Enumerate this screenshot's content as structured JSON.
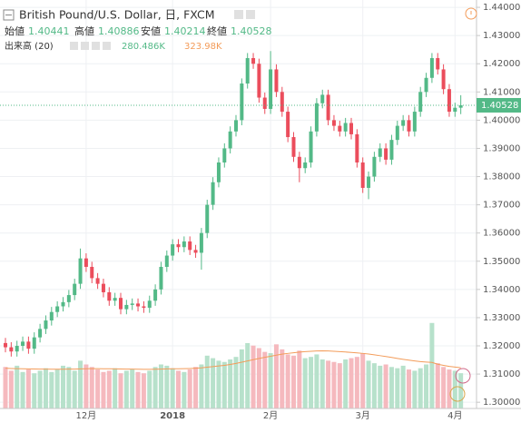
{
  "chart_data": {
    "type": "candlestick",
    "title": "British Pound/U.S. Dollar, 日, FXCM",
    "ohlc_labels": [
      "始値",
      "高値",
      "安値",
      "終値"
    ],
    "volume_label": "出来高 (20)",
    "volume_value_label": "280.486K",
    "volume_ma_value_label": "323.98K",
    "categories": [
      null,
      null,
      null,
      null,
      null,
      null,
      null,
      null,
      null,
      null,
      null,
      null,
      null,
      null,
      "12月",
      null,
      null,
      null,
      null,
      null,
      null,
      null,
      null,
      null,
      null,
      null,
      null,
      null,
      null,
      "2018",
      null,
      null,
      null,
      null,
      null,
      null,
      null,
      null,
      null,
      null,
      null,
      null,
      null,
      null,
      null,
      null,
      "2月",
      null,
      null,
      null,
      null,
      null,
      null,
      null,
      null,
      null,
      null,
      null,
      null,
      null,
      null,
      null,
      "3月",
      null,
      null,
      null,
      null,
      null,
      null,
      null,
      null,
      null,
      null,
      null,
      null,
      null,
      null,
      null,
      "4月",
      null
    ],
    "open": [
      1.321,
      1.3195,
      1.318,
      1.32,
      1.3215,
      1.319,
      1.323,
      1.326,
      1.329,
      1.332,
      1.334,
      1.3355,
      1.338,
      1.342,
      1.351,
      1.348,
      1.344,
      1.342,
      1.339,
      1.336,
      1.337,
      1.333,
      1.3345,
      1.335,
      1.334,
      1.3335,
      1.336,
      1.34,
      1.348,
      1.352,
      1.356,
      1.355,
      1.357,
      1.354,
      1.353,
      1.36,
      1.37,
      1.378,
      1.385,
      1.39,
      1.396,
      1.4,
      1.413,
      1.422,
      1.42,
      1.408,
      1.404,
      1.418,
      1.41,
      1.403,
      1.394,
      1.387,
      1.383,
      1.385,
      1.396,
      1.406,
      1.409,
      1.4,
      1.398,
      1.396,
      1.399,
      1.395,
      1.385,
      1.376,
      1.38,
      1.387,
      1.39,
      1.386,
      1.393,
      1.398,
      1.4,
      1.396,
      1.403,
      1.41,
      1.415,
      1.422,
      1.418,
      1.411,
      1.403,
      1.40441
    ],
    "high": [
      1.3228,
      1.3213,
      1.3218,
      1.3233,
      1.3233,
      1.3248,
      1.3278,
      1.3308,
      1.3338,
      1.3358,
      1.3373,
      1.3398,
      1.3438,
      1.3545,
      1.3528,
      1.3498,
      1.3458,
      1.3438,
      1.3408,
      1.3388,
      1.3388,
      1.3363,
      1.3368,
      1.3368,
      1.3358,
      1.3378,
      1.3418,
      1.3498,
      1.3538,
      1.3578,
      1.3578,
      1.3588,
      1.3588,
      1.3558,
      1.3618,
      1.3718,
      1.3798,
      1.3868,
      1.3918,
      1.3978,
      1.4018,
      1.4148,
      1.4238,
      1.4238,
      1.4218,
      1.4098,
      1.4245,
      1.4198,
      1.4118,
      1.4048,
      1.3958,
      1.3888,
      1.3868,
      1.3978,
      1.4078,
      1.4108,
      1.4108,
      1.4018,
      1.3998,
      1.4008,
      1.4008,
      1.3968,
      1.3868,
      1.3818,
      1.3888,
      1.3918,
      1.3918,
      1.3948,
      1.3998,
      1.4018,
      1.4018,
      1.4048,
      1.4118,
      1.4168,
      1.4238,
      1.4238,
      1.4198,
      1.4128,
      1.4062,
      1.40886
    ],
    "low": [
      1.3177,
      1.3162,
      1.3162,
      1.3182,
      1.3172,
      1.3172,
      1.3212,
      1.3242,
      1.3272,
      1.3302,
      1.3322,
      1.3337,
      1.3362,
      1.3402,
      1.3462,
      1.3422,
      1.3402,
      1.3372,
      1.3342,
      1.3342,
      1.3312,
      1.3312,
      1.3327,
      1.3322,
      1.3317,
      1.3317,
      1.3342,
      1.3382,
      1.3462,
      1.3502,
      1.3532,
      1.3532,
      1.3522,
      1.3512,
      1.347,
      1.3582,
      1.3682,
      1.3762,
      1.3832,
      1.3882,
      1.3942,
      1.3982,
      1.4112,
      1.4182,
      1.4062,
      1.4022,
      1.4022,
      1.4082,
      1.4012,
      1.3922,
      1.3852,
      1.378,
      1.3812,
      1.3832,
      1.3942,
      1.4042,
      1.3982,
      1.3962,
      1.3942,
      1.3942,
      1.3932,
      1.3832,
      1.3742,
      1.372,
      1.3782,
      1.3852,
      1.3842,
      1.3842,
      1.3912,
      1.3962,
      1.3942,
      1.3942,
      1.4012,
      1.4082,
      1.4132,
      1.4162,
      1.4092,
      1.4012,
      1.4012,
      1.40214
    ],
    "close": [
      1.3195,
      1.318,
      1.32,
      1.3215,
      1.319,
      1.323,
      1.326,
      1.329,
      1.332,
      1.334,
      1.3355,
      1.338,
      1.342,
      1.351,
      1.348,
      1.344,
      1.342,
      1.339,
      1.336,
      1.337,
      1.333,
      1.3345,
      1.335,
      1.334,
      1.3335,
      1.336,
      1.34,
      1.348,
      1.352,
      1.356,
      1.355,
      1.357,
      1.354,
      1.353,
      1.36,
      1.37,
      1.378,
      1.385,
      1.39,
      1.396,
      1.4,
      1.413,
      1.422,
      1.42,
      1.408,
      1.404,
      1.418,
      1.41,
      1.403,
      1.394,
      1.387,
      1.383,
      1.385,
      1.396,
      1.406,
      1.409,
      1.4,
      1.398,
      1.396,
      1.399,
      1.395,
      1.385,
      1.376,
      1.38,
      1.387,
      1.39,
      1.386,
      1.393,
      1.398,
      1.4,
      1.396,
      1.403,
      1.41,
      1.415,
      1.422,
      1.418,
      1.411,
      1.403,
      1.4044,
      1.40528
    ],
    "volume": [
      330,
      300,
      340,
      290,
      310,
      280,
      300,
      320,
      290,
      310,
      340,
      330,
      300,
      380,
      350,
      330,
      310,
      290,
      300,
      320,
      280,
      300,
      310,
      290,
      280,
      300,
      330,
      350,
      340,
      320,
      300,
      290,
      310,
      330,
      350,
      420,
      400,
      380,
      370,
      390,
      410,
      470,
      520,
      500,
      480,
      450,
      440,
      510,
      470,
      430,
      420,
      460,
      400,
      410,
      430,
      390,
      380,
      370,
      360,
      390,
      400,
      410,
      440,
      380,
      360,
      340,
      350,
      330,
      320,
      340,
      310,
      300,
      320,
      350,
      680,
      360,
      330,
      310,
      300,
      280.486
    ],
    "volume_ma": [
      320,
      318,
      317,
      316,
      315,
      314,
      313,
      313,
      312,
      312,
      312,
      313,
      313,
      315,
      316,
      317,
      317,
      316,
      316,
      315,
      314,
      313,
      313,
      312,
      311,
      311,
      312,
      313,
      315,
      316,
      316,
      317,
      318,
      320,
      323,
      328,
      333,
      338,
      343,
      350,
      358,
      368,
      378,
      388,
      398,
      407,
      415,
      424,
      432,
      438,
      443,
      448,
      452,
      455,
      457,
      458,
      457,
      455,
      452,
      449,
      446,
      442,
      438,
      433,
      427,
      420,
      413,
      406,
      398,
      391,
      384,
      378,
      373,
      369,
      366,
      352,
      343,
      335,
      329,
      323.98
    ],
    "colors": {
      "up": "#53b987",
      "down": "#eb4d5c",
      "volume_up": "#b7e1cb",
      "volume_down": "#f5b9be",
      "ma": "#f39c5a"
    },
    "ylim": [
      1.2978,
      1.4426
    ],
    "yticks": [
      {
        "value": 1.3,
        "label": "1.30000"
      },
      {
        "value": 1.31,
        "label": "1.31000"
      },
      {
        "value": 1.32,
        "label": "1.32000"
      },
      {
        "value": 1.33,
        "label": "1.33000"
      },
      {
        "value": 1.34,
        "label": "1.34000"
      },
      {
        "value": 1.35,
        "label": "1.35000"
      },
      {
        "value": 1.36,
        "label": "1.36000"
      },
      {
        "value": 1.37,
        "label": "1.37000"
      },
      {
        "value": 1.38,
        "label": "1.38000"
      },
      {
        "value": 1.39,
        "label": "1.39000"
      },
      {
        "value": 1.4,
        "label": "1.40000"
      },
      {
        "value": 1.41,
        "label": "1.41000"
      },
      {
        "value": 1.42,
        "label": "1.42000"
      },
      {
        "value": 1.43,
        "label": "1.43000"
      },
      {
        "value": 1.44,
        "label": "1.44000"
      }
    ],
    "volume_ylim": [
      0,
      830
    ],
    "grid": true
  }
}
